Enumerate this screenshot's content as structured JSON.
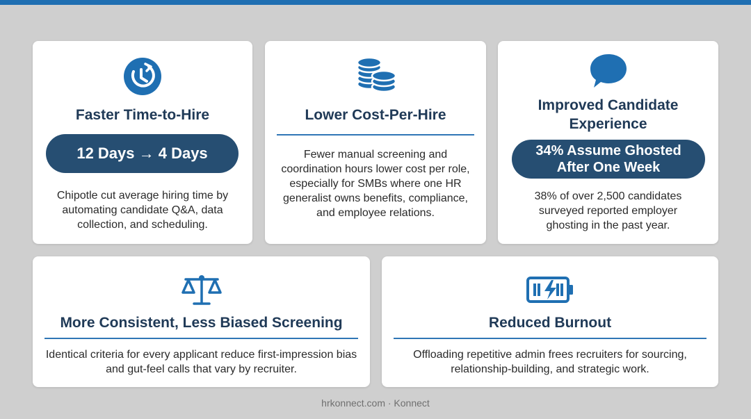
{
  "colors": {
    "accent": "#1f6fb2",
    "pill": "#264e72",
    "title": "#203a57"
  },
  "cards": [
    {
      "icon": "stopwatch-icon",
      "title": "Faster Time-to-Hire",
      "pill": "12 Days → 4 Days",
      "body": "Chipotle cut average hiring time by automating candidate Q&A, data collection, and scheduling."
    },
    {
      "icon": "coins-icon",
      "title": "Lower Cost-Per-Hire",
      "body": "Fewer manual screening and coordination hours lower cost per role, especially for SMBs where one HR generalist owns benefits, compliance, and employee relations."
    },
    {
      "icon": "chat-bubble-icon",
      "title": "Improved Candidate Experience",
      "pill": "34% Assume Ghosted After One Week",
      "body": "38% of over 2,500 candidates surveyed reported employer ghosting in the past year."
    },
    {
      "icon": "scales-icon",
      "title": "More Consistent, Less Biased Screening",
      "body": "Identical criteria for every applicant reduce first-impression bias and gut-feel calls that vary by recruiter."
    },
    {
      "icon": "battery-charging-icon",
      "title": "Reduced Burnout",
      "body": "Offloading repetitive admin frees recruiters for sourcing, relationship-building, and strategic work."
    }
  ],
  "footer": "hrkonnect.com · Konnect"
}
